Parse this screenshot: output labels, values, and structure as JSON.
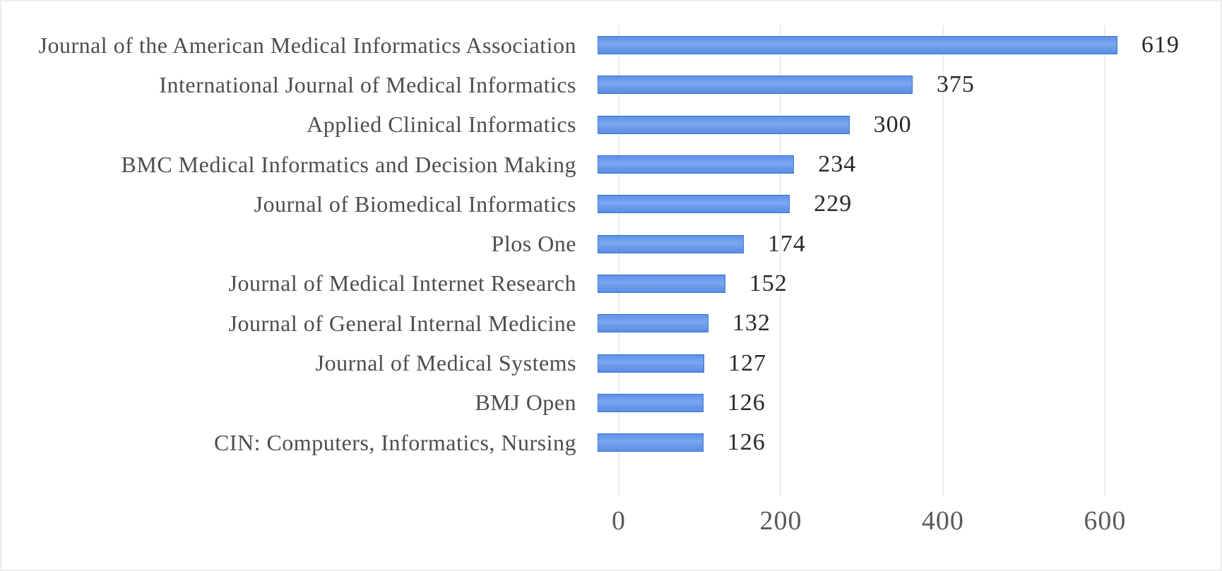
{
  "chart_data": {
    "type": "bar",
    "orientation": "horizontal",
    "title": "",
    "xlabel": "",
    "ylabel": "",
    "categories": [
      "Journal of the American Medical Informatics Association",
      "International Journal of Medical Informatics",
      "Applied Clinical Informatics",
      "BMC Medical Informatics and Decision Making",
      "Journal of Biomedical Informatics",
      "Plos One",
      "Journal of Medical Internet Research",
      "Journal of General Internal Medicine",
      "Journal of Medical Systems",
      "BMJ Open",
      "CIN: Computers, Informatics, Nursing"
    ],
    "values": [
      619,
      375,
      300,
      234,
      229,
      174,
      152,
      132,
      127,
      126,
      126
    ],
    "data_labels_shown": true,
    "x_ticks": [
      0,
      200,
      400,
      600
    ],
    "xlim": [
      0,
      720
    ],
    "grid": "vertical-only",
    "legend": "none",
    "colors": {
      "bar_fill": "#6d9eea",
      "bar_border": "#3e74cf",
      "gridline": "#d9d9d9",
      "category_text": "#4e4e4e",
      "value_text": "#282828",
      "tick_text": "#595959",
      "background": "#ffffff"
    }
  }
}
